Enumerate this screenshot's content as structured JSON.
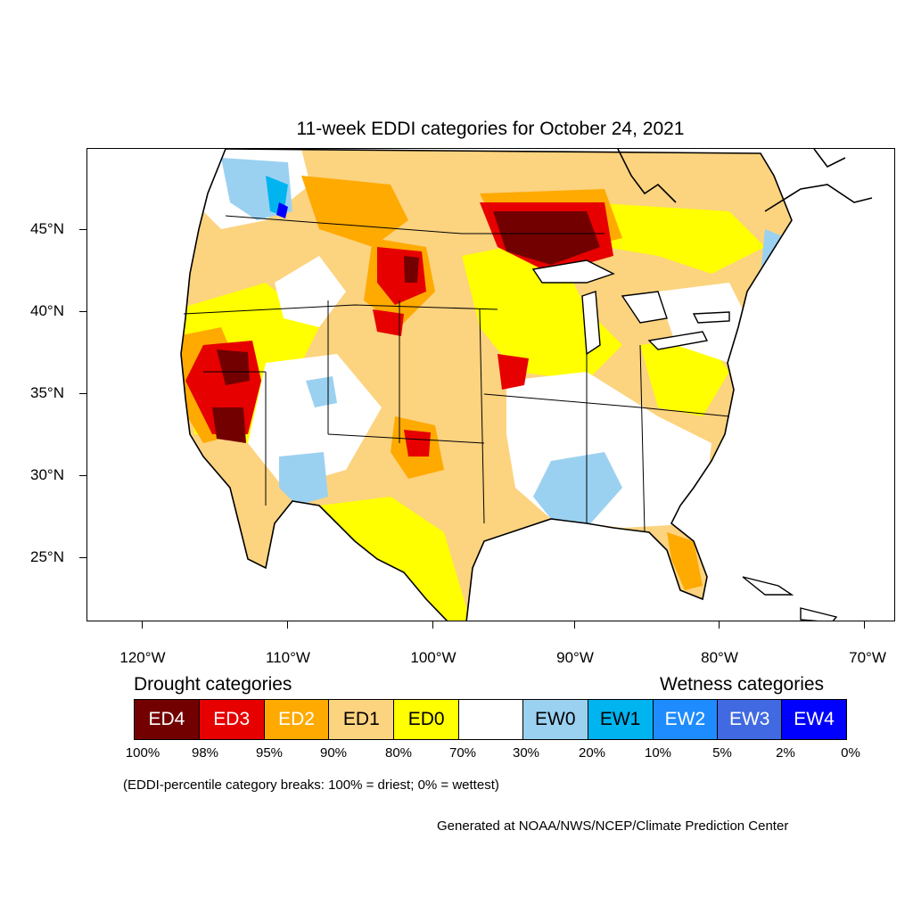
{
  "title": "11-week EDDI categories for October 24, 2021",
  "lat_labels": [
    "45°N",
    "40°N",
    "35°N",
    "30°N",
    "25°N"
  ],
  "lon_labels": [
    "120°W",
    "110°W",
    "100°W",
    "90°W",
    "80°W",
    "70°W"
  ],
  "legend": {
    "drought_title": "Drought categories",
    "wetness_title": "Wetness categories",
    "categories": [
      {
        "label": "ED4",
        "color": "#730000",
        "text_color": "#ffffff"
      },
      {
        "label": "ED3",
        "color": "#e60000",
        "text_color": "#ffffff"
      },
      {
        "label": "ED2",
        "color": "#ffaa00",
        "text_color": "#ffffff"
      },
      {
        "label": "ED1",
        "color": "#fcd37f",
        "text_color": "#000000"
      },
      {
        "label": "ED0",
        "color": "#ffff00",
        "text_color": "#000000"
      },
      {
        "label": "",
        "color": "#ffffff",
        "text_color": "#000000"
      },
      {
        "label": "EW0",
        "color": "#9bd1f0",
        "text_color": "#000000"
      },
      {
        "label": "EW1",
        "color": "#00b4f0",
        "text_color": "#000000"
      },
      {
        "label": "EW2",
        "color": "#1e8cff",
        "text_color": "#ffffff"
      },
      {
        "label": "EW3",
        "color": "#4169e1",
        "text_color": "#ffffff"
      },
      {
        "label": "EW4",
        "color": "#0000ff",
        "text_color": "#ffffff"
      }
    ],
    "percent_breaks": [
      "100%",
      "98%",
      "95%",
      "90%",
      "80%",
      "70%",
      "30%",
      "20%",
      "10%",
      "5%",
      "2%",
      "0%"
    ]
  },
  "note": "(EDDI-percentile category breaks: 100% = driest; 0% = wettest)",
  "credit": "Generated at NOAA/NWS/NCEP/Climate Prediction Center"
}
